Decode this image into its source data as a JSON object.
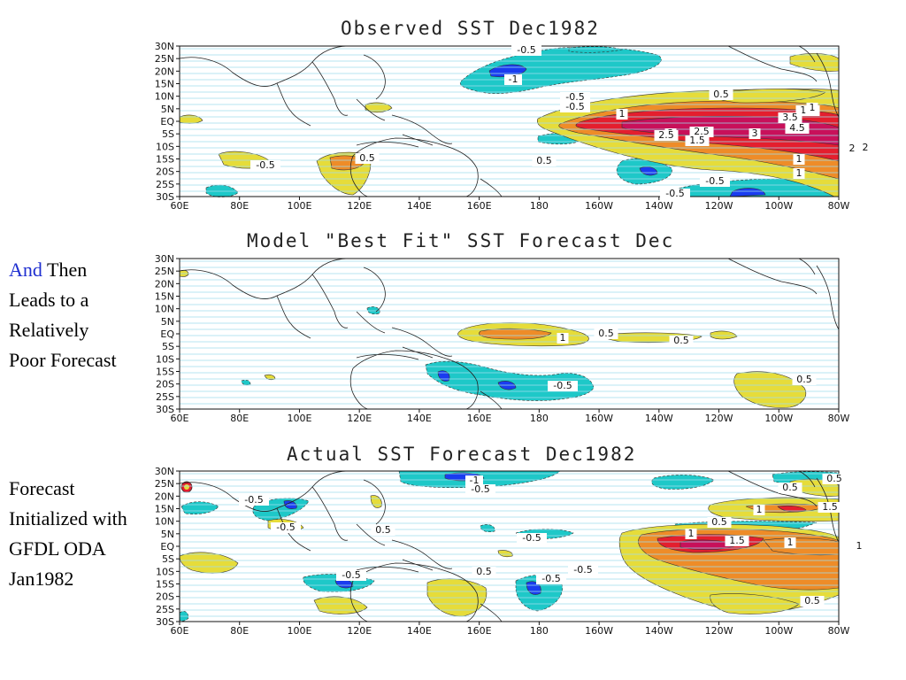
{
  "captions": {
    "first": {
      "accent": "And",
      "rest": "Then Leads to a Relatively Poor Forecast"
    },
    "second": "Forecast Initialized with GFDL ODA Jan1982"
  },
  "axes": {
    "lat_labels": [
      "30N",
      "25N",
      "20N",
      "15N",
      "10N",
      "5N",
      "EQ",
      "5S",
      "10S",
      "15S",
      "20S",
      "25S",
      "30S"
    ],
    "lon_labels": [
      "60E",
      "80E",
      "100E",
      "120E",
      "140E",
      "160E",
      "180",
      "160W",
      "140W",
      "120W",
      "100W",
      "80W"
    ]
  },
  "panels": [
    {
      "title": "Observed SST Dec1982",
      "lat_labels": [
        "30N",
        "25N",
        "20N",
        "15N",
        "10N",
        "5N",
        "EQ",
        "5S",
        "10S",
        "15S",
        "20S",
        "25S",
        "30S"
      ],
      "contour_labels": [
        "-0.5",
        "-1",
        "-0.5",
        "-0.5",
        "0.5",
        "1",
        "1.5",
        "2",
        "2.5",
        "3",
        "3.5",
        "4.5",
        "1.5",
        "2.5",
        "2",
        "1",
        "1",
        "0.5",
        "-0.5",
        "-0.5",
        "-0.5",
        "0.5",
        "1",
        "2"
      ]
    },
    {
      "title": "Model \"Best Fit\" SST Forecast Dec",
      "lat_labels": [
        "30N",
        "25N",
        "20N",
        "15N",
        "10N",
        "5N",
        "EQ",
        "5S",
        "10S",
        "15S",
        "20S",
        "25S",
        "30S"
      ],
      "contour_labels": [
        "1",
        "0.5",
        "0.5",
        "-0.5",
        "0.5"
      ]
    },
    {
      "title": "Actual SST Forecast Dec1982",
      "lat_labels": [
        "30N",
        "25N",
        "20N",
        "15N",
        "10N",
        "5N",
        "EQ",
        "5S",
        "10S",
        "15S",
        "20S",
        "25S",
        "30S"
      ],
      "contour_labels": [
        "-1",
        "-0.5",
        "-0.5",
        "-0.5",
        "0.5",
        "-0.5",
        "-0.5",
        "-0.5",
        "0.5",
        "-0.5",
        "1",
        "1.5",
        "1",
        "1.5",
        "1",
        "0.5",
        "0.5",
        "0.5",
        "1",
        "0.5",
        "-0.5",
        "0.5"
      ]
    }
  ],
  "colors": {
    "neg_light": "#1ec8c8",
    "neg_dark": "#1a3cf0",
    "pos_yellow": "#e6dc3a",
    "pos_orange": "#ee8c28",
    "pos_red": "#e41e2e",
    "pos_dark": "#c8105a"
  }
}
